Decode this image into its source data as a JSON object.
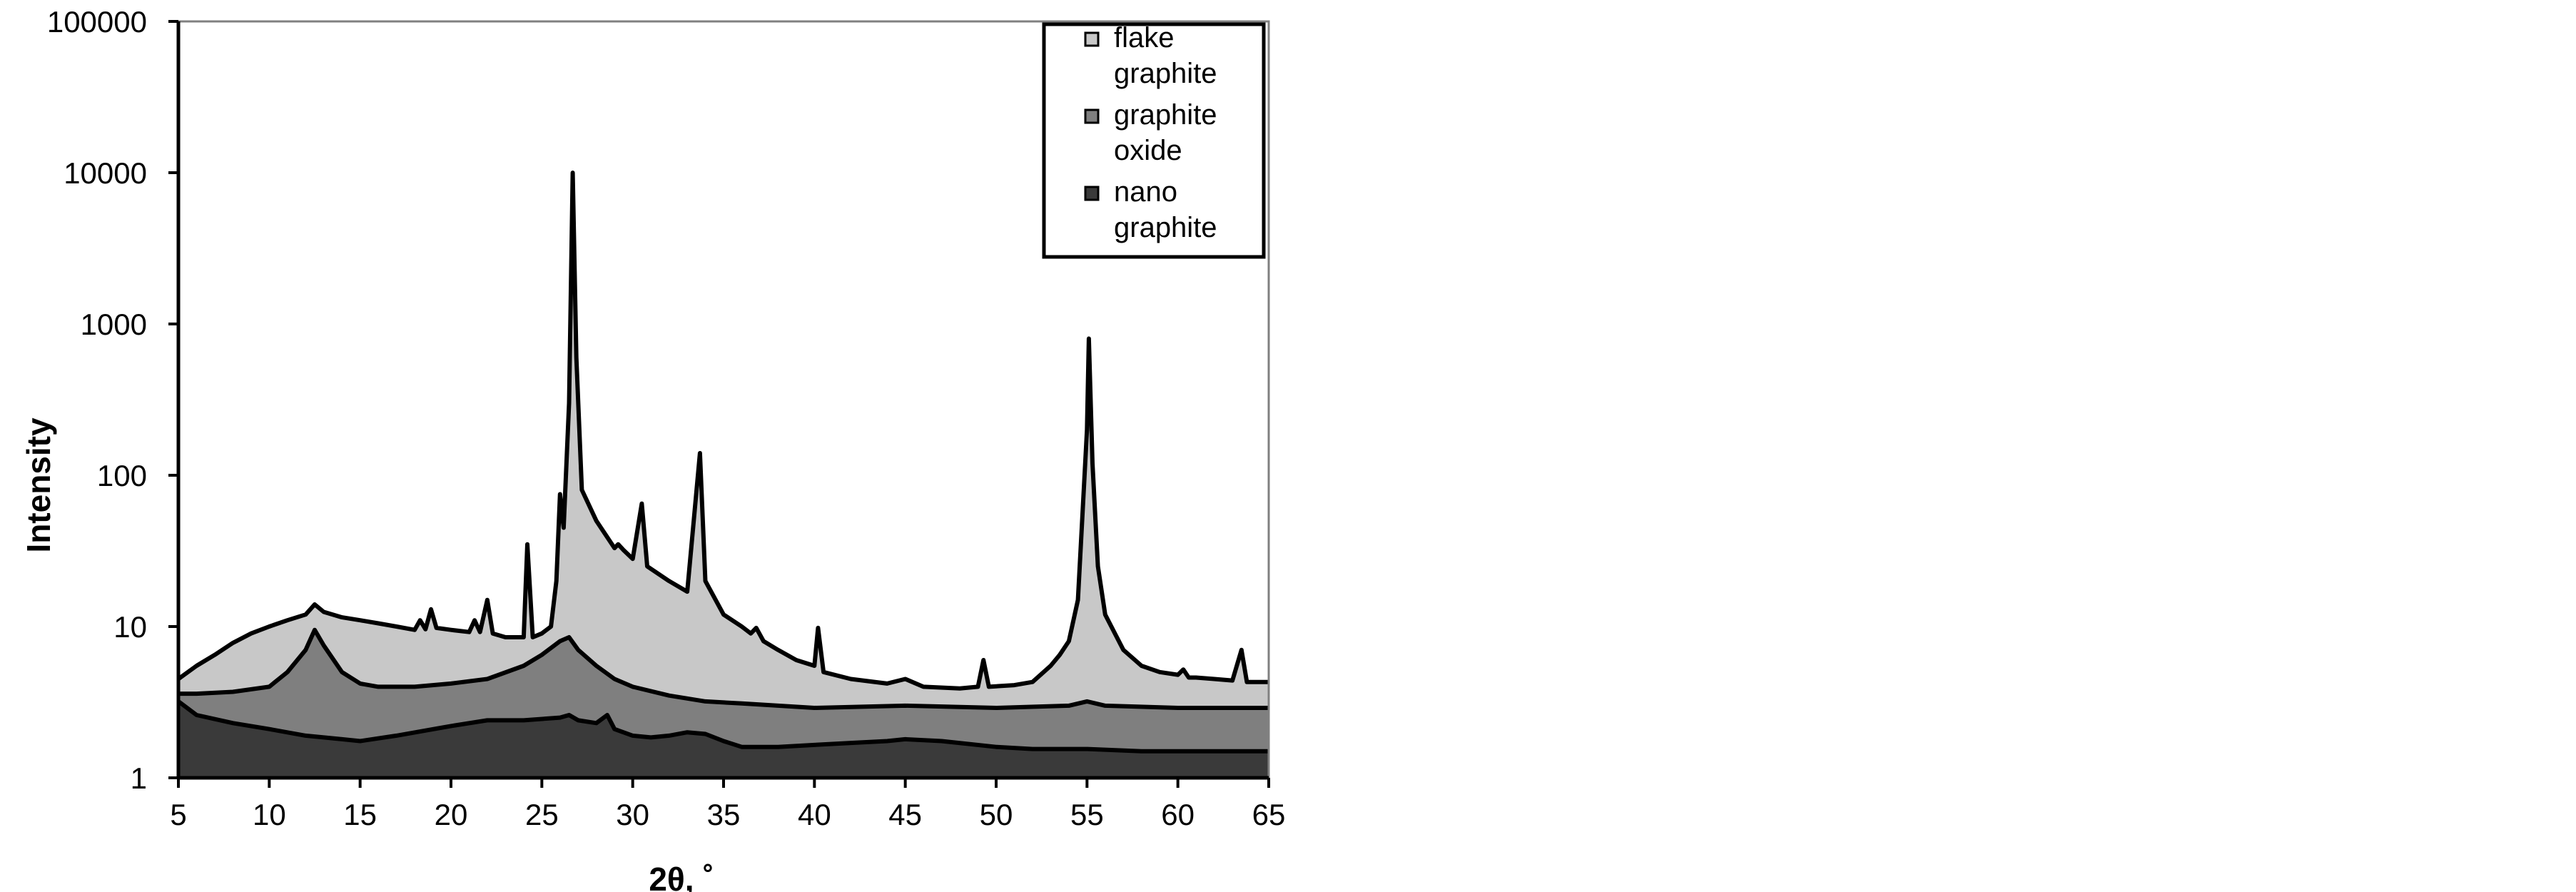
{
  "chart_data": {
    "type": "area",
    "xlabel": "2θ, ˚",
    "ylabel": "Intensity",
    "yscale": "log",
    "xlim": [
      5,
      65
    ],
    "ylim": [
      1,
      100000
    ],
    "x_ticks": [
      5,
      10,
      15,
      20,
      25,
      30,
      35,
      40,
      45,
      50,
      55,
      60,
      65
    ],
    "x_tick_labels": [
      "5",
      "10",
      "15",
      "20",
      "25",
      "30",
      "35",
      "40",
      "45",
      "50",
      "55",
      "60",
      "65"
    ],
    "y_ticks": [
      1,
      10,
      100,
      1000,
      10000,
      100000
    ],
    "y_tick_labels": [
      "1",
      "10",
      "100",
      "1000",
      "10000",
      "100000"
    ],
    "grid": false,
    "legend_position": "top-right",
    "legend": [
      {
        "lines": [
          "flake",
          "graphite"
        ],
        "color": "#c8c8c8"
      },
      {
        "lines": [
          "graphite",
          "oxide"
        ],
        "color": "#7f7f7f"
      },
      {
        "lines": [
          "nano",
          "graphite"
        ],
        "color": "#3a3a3a"
      }
    ],
    "series": [
      {
        "color": "#c8c8c8",
        "points": [
          [
            5,
            4.5
          ],
          [
            6,
            5.5
          ],
          [
            7,
            6.5
          ],
          [
            8,
            7.8
          ],
          [
            9,
            9
          ],
          [
            10,
            10
          ],
          [
            11,
            11
          ],
          [
            12,
            12
          ],
          [
            12.5,
            14
          ],
          [
            13,
            12.5
          ],
          [
            14,
            11.5
          ],
          [
            15,
            11
          ],
          [
            16,
            10.5
          ],
          [
            17,
            10
          ],
          [
            18,
            9.5
          ],
          [
            18.3,
            11
          ],
          [
            18.6,
            9.6
          ],
          [
            18.9,
            13
          ],
          [
            19.2,
            9.8
          ],
          [
            20,
            9.5
          ],
          [
            21,
            9.2
          ],
          [
            21.3,
            11
          ],
          [
            21.6,
            9.2
          ],
          [
            22,
            15
          ],
          [
            22.3,
            9
          ],
          [
            23,
            8.5
          ],
          [
            24,
            8.5
          ],
          [
            24.2,
            35
          ],
          [
            24.5,
            8.5
          ],
          [
            25,
            9
          ],
          [
            25.5,
            10
          ],
          [
            25.8,
            20
          ],
          [
            26,
            75
          ],
          [
            26.2,
            45
          ],
          [
            26.5,
            300
          ],
          [
            26.7,
            10000
          ],
          [
            26.9,
            600
          ],
          [
            27.2,
            80
          ],
          [
            28,
            50
          ],
          [
            29,
            33
          ],
          [
            29.2,
            35
          ],
          [
            29.5,
            32
          ],
          [
            30,
            28
          ],
          [
            30.5,
            65
          ],
          [
            30.8,
            25
          ],
          [
            32,
            20
          ],
          [
            33,
            17
          ],
          [
            33.7,
            140
          ],
          [
            34,
            20
          ],
          [
            35,
            12
          ],
          [
            36,
            10
          ],
          [
            36.5,
            9
          ],
          [
            36.8,
            9.8
          ],
          [
            37.2,
            8
          ],
          [
            38,
            7
          ],
          [
            39,
            6
          ],
          [
            40,
            5.5
          ],
          [
            40.2,
            9.8
          ],
          [
            40.5,
            5
          ],
          [
            42,
            4.5
          ],
          [
            44,
            4.2
          ],
          [
            45,
            4.5
          ],
          [
            46,
            4
          ],
          [
            48,
            3.9
          ],
          [
            49,
            4
          ],
          [
            49.3,
            6
          ],
          [
            49.6,
            4
          ],
          [
            51,
            4.1
          ],
          [
            52,
            4.3
          ],
          [
            53,
            5.5
          ],
          [
            53.5,
            6.5
          ],
          [
            54,
            8
          ],
          [
            54.5,
            15
          ],
          [
            55,
            200
          ],
          [
            55.1,
            800
          ],
          [
            55.3,
            120
          ],
          [
            55.6,
            25
          ],
          [
            56,
            12
          ],
          [
            57,
            7
          ],
          [
            58,
            5.5
          ],
          [
            59,
            5
          ],
          [
            60,
            4.8
          ],
          [
            60.3,
            5.2
          ],
          [
            60.6,
            4.6
          ],
          [
            61,
            4.6
          ],
          [
            62,
            4.5
          ],
          [
            63,
            4.4
          ],
          [
            63.5,
            7
          ],
          [
            63.8,
            4.3
          ],
          [
            64,
            4.3
          ],
          [
            65,
            4.3
          ]
        ]
      },
      {
        "color": "#7f7f7f",
        "points": [
          [
            5,
            3.6
          ],
          [
            6,
            3.6
          ],
          [
            8,
            3.7
          ],
          [
            10,
            4
          ],
          [
            11,
            5
          ],
          [
            12,
            7
          ],
          [
            12.5,
            9.5
          ],
          [
            13,
            7.5
          ],
          [
            14,
            5
          ],
          [
            15,
            4.2
          ],
          [
            16,
            4
          ],
          [
            18,
            4
          ],
          [
            20,
            4.2
          ],
          [
            22,
            4.5
          ],
          [
            24,
            5.5
          ],
          [
            25,
            6.5
          ],
          [
            26,
            8
          ],
          [
            26.5,
            8.5
          ],
          [
            27,
            7
          ],
          [
            28,
            5.5
          ],
          [
            29,
            4.5
          ],
          [
            30,
            4
          ],
          [
            32,
            3.5
          ],
          [
            34,
            3.2
          ],
          [
            36,
            3.1
          ],
          [
            38,
            3
          ],
          [
            40,
            2.9
          ],
          [
            45,
            3
          ],
          [
            50,
            2.9
          ],
          [
            54,
            3
          ],
          [
            55,
            3.2
          ],
          [
            56,
            3
          ],
          [
            60,
            2.9
          ],
          [
            65,
            2.9
          ]
        ]
      },
      {
        "color": "#3a3a3a",
        "points": [
          [
            5,
            3.2
          ],
          [
            6,
            2.6
          ],
          [
            8,
            2.3
          ],
          [
            10,
            2.1
          ],
          [
            12,
            1.9
          ],
          [
            14,
            1.8
          ],
          [
            15,
            1.75
          ],
          [
            17,
            1.9
          ],
          [
            20,
            2.2
          ],
          [
            22,
            2.4
          ],
          [
            24,
            2.4
          ],
          [
            26,
            2.5
          ],
          [
            26.5,
            2.6
          ],
          [
            27,
            2.4
          ],
          [
            28,
            2.3
          ],
          [
            28.6,
            2.6
          ],
          [
            29,
            2.1
          ],
          [
            30,
            1.9
          ],
          [
            31,
            1.85
          ],
          [
            32,
            1.9
          ],
          [
            33,
            2
          ],
          [
            34,
            1.95
          ],
          [
            35,
            1.75
          ],
          [
            36,
            1.6
          ],
          [
            38,
            1.6
          ],
          [
            40,
            1.65
          ],
          [
            42,
            1.7
          ],
          [
            44,
            1.75
          ],
          [
            45,
            1.8
          ],
          [
            47,
            1.75
          ],
          [
            50,
            1.6
          ],
          [
            52,
            1.55
          ],
          [
            55,
            1.55
          ],
          [
            58,
            1.5
          ],
          [
            60,
            1.5
          ],
          [
            62,
            1.5
          ],
          [
            65,
            1.5
          ]
        ]
      }
    ]
  }
}
